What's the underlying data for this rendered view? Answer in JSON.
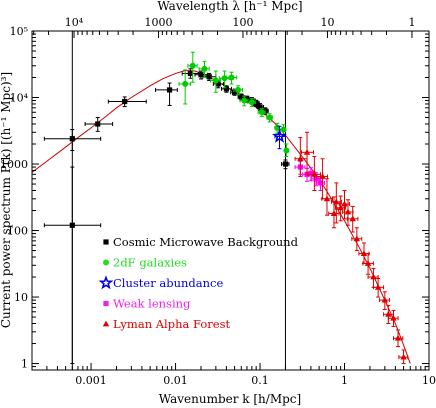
{
  "chart_data": {
    "type": "scatter",
    "xlabel": "Wavenumber k [h/Mpc]",
    "x2label": "Wavelength λ [h⁻¹ Mpc]",
    "ylabel": "Current power spectrum P(k) [(h⁻¹ Mpc)³]",
    "xscale": "log",
    "yscale": "log",
    "xlim": [
      0.0002,
      10
    ],
    "ylim": [
      0.8,
      100000
    ],
    "x_ticks": [
      {
        "value": 0.001,
        "label": "0.001"
      },
      {
        "value": 0.01,
        "label": "0.01"
      },
      {
        "value": 0.1,
        "label": "0.1"
      },
      {
        "value": 1,
        "label": "1"
      },
      {
        "value": 10,
        "label": "10"
      }
    ],
    "y_ticks": [
      {
        "value": 1,
        "label": "1"
      },
      {
        "value": 10,
        "label": "10"
      },
      {
        "value": 100,
        "label": "100"
      },
      {
        "value": 1000,
        "label": "1000"
      },
      {
        "value": 10000,
        "label": "10⁴"
      },
      {
        "value": 100000,
        "label": "10⁵"
      }
    ],
    "top_ticks": [
      {
        "value": 10000,
        "label": "10⁴"
      },
      {
        "value": 1000,
        "label": "1000"
      },
      {
        "value": 100,
        "label": "100"
      },
      {
        "value": 10,
        "label": "10"
      },
      {
        "value": 1,
        "label": "1"
      }
    ],
    "vertical_lines": [
      0.0006,
      0.2
    ],
    "legend_placement": "lower-left",
    "model_curve": {
      "color": "#cc0000",
      "points": [
        [
          0.0002,
          750
        ],
        [
          0.0003,
          1100
        ],
        [
          0.0005,
          1800
        ],
        [
          0.0007,
          2500
        ],
        [
          0.001,
          3500
        ],
        [
          0.0015,
          5200
        ],
        [
          0.002,
          7000
        ],
        [
          0.003,
          10000
        ],
        [
          0.005,
          15000
        ],
        [
          0.007,
          19000
        ],
        [
          0.01,
          23000
        ],
        [
          0.013,
          25500
        ],
        [
          0.017,
          25000
        ],
        [
          0.022,
          22000
        ],
        [
          0.03,
          18000
        ],
        [
          0.04,
          14500
        ],
        [
          0.05,
          12000
        ],
        [
          0.07,
          8800
        ],
        [
          0.1,
          6500
        ],
        [
          0.15,
          4100
        ],
        [
          0.2,
          2700
        ],
        [
          0.3,
          1400
        ],
        [
          0.5,
          600
        ],
        [
          0.7,
          300
        ],
        [
          1,
          140
        ],
        [
          1.5,
          55
        ],
        [
          2,
          27
        ],
        [
          3,
          9
        ],
        [
          4,
          4
        ],
        [
          5,
          1.9
        ],
        [
          6,
          1
        ]
      ]
    },
    "series": [
      {
        "name": "Cosmic Microwave Background",
        "marker": "square",
        "color": "#000000",
        "legend_color": "#000000",
        "points": [
          {
            "x": 0.0006,
            "y": 120,
            "xlo": 0.00028,
            "xhi": 0.0013,
            "ylo": 1,
            "yhi": 900
          },
          {
            "x": 0.0006,
            "y": 2400,
            "xlo": 0.00028,
            "xhi": 0.0013,
            "ylo": 1600,
            "yhi": 3300
          },
          {
            "x": 0.0012,
            "y": 4000,
            "xlo": 0.00085,
            "xhi": 0.0018,
            "ylo": 3100,
            "yhi": 5000
          },
          {
            "x": 0.0025,
            "y": 8700,
            "xlo": 0.0016,
            "xhi": 0.0045,
            "ylo": 7300,
            "yhi": 10200
          },
          {
            "x": 0.0085,
            "y": 13000,
            "xlo": 0.0058,
            "xhi": 0.0105,
            "ylo": 7600,
            "yhi": 16500
          },
          {
            "x": 0.015,
            "y": 23000,
            "xlo": 0.012,
            "xhi": 0.019,
            "ylo": 19500,
            "yhi": 27000
          },
          {
            "x": 0.02,
            "y": 22000,
            "xlo": 0.017,
            "xhi": 0.024,
            "ylo": 19000,
            "yhi": 25000
          },
          {
            "x": 0.025,
            "y": 20500,
            "xlo": 0.021,
            "xhi": 0.03,
            "ylo": 18000,
            "yhi": 23000
          },
          {
            "x": 0.032,
            "y": 16000,
            "xlo": 0.028,
            "xhi": 0.037,
            "ylo": 14000,
            "yhi": 18000
          },
          {
            "x": 0.04,
            "y": 13500,
            "xlo": 0.035,
            "xhi": 0.046,
            "ylo": 12000,
            "yhi": 15000
          },
          {
            "x": 0.05,
            "y": 12000,
            "xlo": 0.045,
            "xhi": 0.056,
            "ylo": 10800,
            "yhi": 13300
          },
          {
            "x": 0.06,
            "y": 10200,
            "xlo": 0.055,
            "xhi": 0.066,
            "ylo": 9200,
            "yhi": 11300
          },
          {
            "x": 0.07,
            "y": 9500,
            "xlo": 0.064,
            "xhi": 0.077,
            "ylo": 8500,
            "yhi": 10500
          },
          {
            "x": 0.08,
            "y": 9000,
            "xlo": 0.073,
            "xhi": 0.088,
            "ylo": 8000,
            "yhi": 10000
          },
          {
            "x": 0.09,
            "y": 8200,
            "xlo": 0.083,
            "xhi": 0.098,
            "ylo": 7300,
            "yhi": 9100
          },
          {
            "x": 0.1,
            "y": 7200,
            "xlo": 0.092,
            "xhi": 0.11,
            "ylo": 6400,
            "yhi": 8100
          },
          {
            "x": 0.115,
            "y": 6300,
            "xlo": 0.105,
            "xhi": 0.125,
            "ylo": 5600,
            "yhi": 7000
          },
          {
            "x": 0.2,
            "y": 1000,
            "xlo": 0.18,
            "xhi": 0.22,
            "ylo": 850,
            "yhi": 1150
          }
        ]
      },
      {
        "name": "2dF galaxies",
        "marker": "circle",
        "color": "#00cc00",
        "legend_color": "#22dd22",
        "points": [
          {
            "x": 0.016,
            "y": 30000,
            "xlo": 0.014,
            "xhi": 0.018,
            "ylo": 17000,
            "yhi": 48000
          },
          {
            "x": 0.013,
            "y": 16000,
            "xlo": 0.011,
            "xhi": 0.015,
            "ylo": 8000,
            "yhi": 26000
          },
          {
            "x": 0.022,
            "y": 27000,
            "xlo": 0.019,
            "xhi": 0.025,
            "ylo": 20000,
            "yhi": 35000
          },
          {
            "x": 0.03,
            "y": 18000,
            "xlo": 0.026,
            "xhi": 0.034,
            "ylo": 12000,
            "yhi": 25000
          },
          {
            "x": 0.038,
            "y": 19500,
            "xlo": 0.033,
            "xhi": 0.043,
            "ylo": 14000,
            "yhi": 25000
          },
          {
            "x": 0.046,
            "y": 20000,
            "xlo": 0.04,
            "xhi": 0.053,
            "ylo": 16000,
            "yhi": 24000
          },
          {
            "x": 0.055,
            "y": 13000,
            "xlo": 0.049,
            "xhi": 0.062,
            "ylo": 11000,
            "yhi": 15000
          },
          {
            "x": 0.065,
            "y": 9000,
            "xlo": 0.058,
            "xhi": 0.072,
            "ylo": 7500,
            "yhi": 10500
          },
          {
            "x": 0.08,
            "y": 8500,
            "xlo": 0.072,
            "xhi": 0.088,
            "ylo": 7300,
            "yhi": 9700
          },
          {
            "x": 0.105,
            "y": 6000,
            "xlo": 0.095,
            "xhi": 0.115,
            "ylo": 5200,
            "yhi": 6800
          },
          {
            "x": 0.13,
            "y": 5000,
            "xlo": 0.12,
            "xhi": 0.14,
            "ylo": 4300,
            "yhi": 5700
          },
          {
            "x": 0.16,
            "y": 3500,
            "xlo": 0.15,
            "xhi": 0.17,
            "ylo": 2900,
            "yhi": 4100
          },
          {
            "x": 0.19,
            "y": 3300,
            "xlo": 0.18,
            "xhi": 0.2,
            "ylo": 2700,
            "yhi": 3900
          },
          {
            "x": 0.205,
            "y": 1600,
            "xlo": 0.195,
            "xhi": 0.215,
            "ylo": 1300,
            "yhi": 2000
          }
        ]
      },
      {
        "name": "Cluster abundance",
        "marker": "star",
        "color": "#0000dd",
        "legend_color": "#0000dd",
        "points": [
          {
            "x": 0.17,
            "y": 2600,
            "xlo": 0.15,
            "xhi": 0.2,
            "ylo": 1700,
            "yhi": 3700
          }
        ]
      },
      {
        "name": "Weak lensing",
        "marker": "square",
        "color": "#ff00ff",
        "legend_color": "#ee22ee",
        "points": [
          {
            "x": 0.3,
            "y": 900,
            "xlo": 0.26,
            "xhi": 0.34,
            "ylo": 700,
            "yhi": 1100
          },
          {
            "x": 0.36,
            "y": 700,
            "xlo": 0.32,
            "xhi": 0.41,
            "ylo": 550,
            "yhi": 860
          },
          {
            "x": 0.4,
            "y": 720,
            "xlo": 0.36,
            "xhi": 0.45,
            "ylo": 560,
            "yhi": 880
          },
          {
            "x": 0.46,
            "y": 600,
            "xlo": 0.41,
            "xhi": 0.51,
            "ylo": 470,
            "yhi": 740
          },
          {
            "x": 0.52,
            "y": 520,
            "xlo": 0.47,
            "xhi": 0.58,
            "ylo": 400,
            "yhi": 650
          }
        ]
      },
      {
        "name": "Lyman Alpha Forest",
        "marker": "triangle",
        "color": "#dd0000",
        "legend_color": "#dd0000",
        "points": [
          {
            "x": 0.3,
            "y": 1200,
            "xlo": 0.26,
            "xhi": 0.36,
            "ylo": 650,
            "yhi": 2500
          },
          {
            "x": 0.36,
            "y": 1500,
            "xlo": 0.31,
            "xhi": 0.43,
            "ylo": 700,
            "yhi": 3000
          },
          {
            "x": 0.44,
            "y": 700,
            "xlo": 0.37,
            "xhi": 0.52,
            "ylo": 400,
            "yhi": 1300
          },
          {
            "x": 0.55,
            "y": 650,
            "xlo": 0.47,
            "xhi": 0.63,
            "ylo": 300,
            "yhi": 1200
          },
          {
            "x": 0.62,
            "y": 300,
            "xlo": 0.54,
            "xhi": 0.72,
            "ylo": 170,
            "yhi": 600
          },
          {
            "x": 0.75,
            "y": 180,
            "xlo": 0.65,
            "xhi": 0.86,
            "ylo": 110,
            "yhi": 320
          },
          {
            "x": 0.8,
            "y": 270,
            "xlo": 0.7,
            "xhi": 0.92,
            "ylo": 130,
            "yhi": 520
          },
          {
            "x": 0.9,
            "y": 220,
            "xlo": 0.78,
            "xhi": 1.03,
            "ylo": 140,
            "yhi": 330
          },
          {
            "x": 1.0,
            "y": 250,
            "xlo": 0.87,
            "xhi": 1.15,
            "ylo": 150,
            "yhi": 400
          },
          {
            "x": 1.1,
            "y": 190,
            "xlo": 0.95,
            "xhi": 1.26,
            "ylo": 120,
            "yhi": 290
          },
          {
            "x": 1.25,
            "y": 150,
            "xlo": 1.08,
            "xhi": 1.44,
            "ylo": 95,
            "yhi": 230
          },
          {
            "x": 1.4,
            "y": 75,
            "xlo": 1.22,
            "xhi": 1.6,
            "ylo": 50,
            "yhi": 110
          },
          {
            "x": 1.7,
            "y": 45,
            "xlo": 1.48,
            "xhi": 1.95,
            "ylo": 32,
            "yhi": 65
          },
          {
            "x": 1.9,
            "y": 32,
            "xlo": 1.65,
            "xhi": 2.2,
            "ylo": 22,
            "yhi": 45
          },
          {
            "x": 2.2,
            "y": 20,
            "xlo": 1.9,
            "xhi": 2.5,
            "ylo": 14,
            "yhi": 27
          },
          {
            "x": 2.5,
            "y": 14,
            "xlo": 2.2,
            "xhi": 2.9,
            "ylo": 10,
            "yhi": 19
          },
          {
            "x": 3.0,
            "y": 9,
            "xlo": 2.6,
            "xhi": 3.4,
            "ylo": 6.5,
            "yhi": 12
          },
          {
            "x": 3.3,
            "y": 5.5,
            "xlo": 2.9,
            "xhi": 3.8,
            "ylo": 4,
            "yhi": 7.5
          },
          {
            "x": 3.8,
            "y": 4.8,
            "xlo": 3.3,
            "xhi": 4.3,
            "ylo": 3.6,
            "yhi": 6.3
          },
          {
            "x": 4.3,
            "y": 2.4,
            "xlo": 3.8,
            "xhi": 4.9,
            "ylo": 1.8,
            "yhi": 3.2
          },
          {
            "x": 5.0,
            "y": 1.25,
            "xlo": 4.4,
            "xhi": 5.6,
            "ylo": 1.0,
            "yhi": 1.6
          }
        ]
      }
    ]
  }
}
